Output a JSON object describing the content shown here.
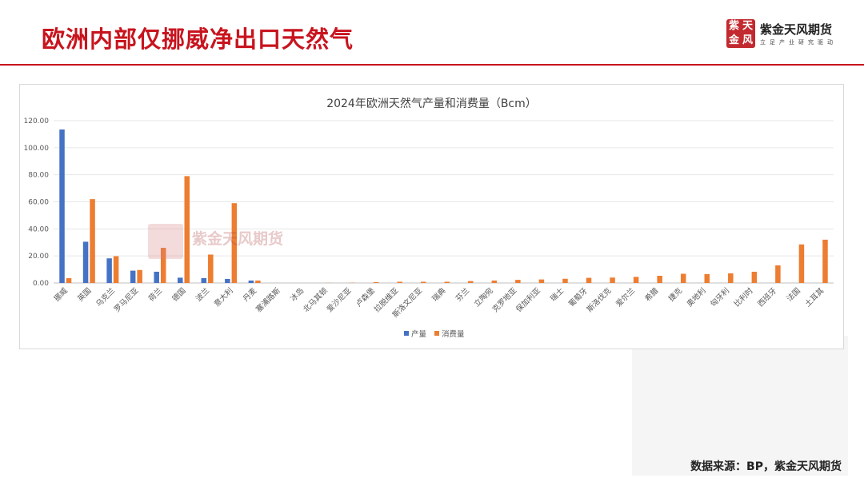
{
  "header": {
    "title": "欧洲内部仅挪威净出口天然气"
  },
  "logo": {
    "seal_chars": [
      "紫",
      "天",
      "金",
      "风"
    ],
    "name": "紫金天风期货",
    "subtitle": "立足产业研究驱动"
  },
  "source": "数据来源：BP，紫金天风期货",
  "chart_data": {
    "type": "bar",
    "title": "2024年欧洲天然气产量和消费量（Bcm）",
    "xlabel": "",
    "ylabel": "",
    "ylim": [
      0,
      120
    ],
    "yticks": [
      "0.00",
      "20.00",
      "40.00",
      "60.00",
      "80.00",
      "100.00",
      "120.00"
    ],
    "grid": true,
    "legend_position": "bottom",
    "categories": [
      "挪威",
      "英国",
      "乌克兰",
      "罗马尼亚",
      "荷兰",
      "德国",
      "波兰",
      "意大利",
      "丹麦",
      "塞浦路斯",
      "冰岛",
      "北马其顿",
      "爱沙尼亚",
      "卢森堡",
      "拉脱维亚",
      "斯洛文尼亚",
      "瑞典",
      "芬兰",
      "立陶宛",
      "克罗地亚",
      "保加利亚",
      "瑞士",
      "葡萄牙",
      "斯洛伐克",
      "爱尔兰",
      "希腊",
      "捷克",
      "奥地利",
      "匈牙利",
      "比利时",
      "西班牙",
      "法国",
      "土耳其"
    ],
    "series": [
      {
        "name": "产量",
        "color": "#4472c4",
        "values": [
          113.5,
          30.5,
          18.2,
          9.1,
          8.3,
          3.9,
          3.6,
          3.0,
          1.8,
          0,
          0,
          0,
          0,
          0,
          0,
          0,
          0,
          0,
          0,
          0,
          0,
          0,
          0,
          0,
          0,
          0,
          0,
          0,
          0,
          0,
          0,
          0,
          0
        ]
      },
      {
        "name": "消费量",
        "color": "#ed7d31",
        "values": [
          3.6,
          62.0,
          19.8,
          9.6,
          26.0,
          79.0,
          21.0,
          59.0,
          1.8,
          0,
          0,
          0.1,
          0.2,
          0.6,
          0.9,
          0.9,
          0.9,
          1.4,
          1.8,
          2.3,
          2.6,
          3.1,
          3.8,
          4.0,
          4.5,
          5.3,
          6.8,
          6.6,
          7.1,
          8.3,
          13.0,
          28.5,
          32.0
        ]
      }
    ],
    "legend": [
      "产量",
      "消费量"
    ]
  }
}
